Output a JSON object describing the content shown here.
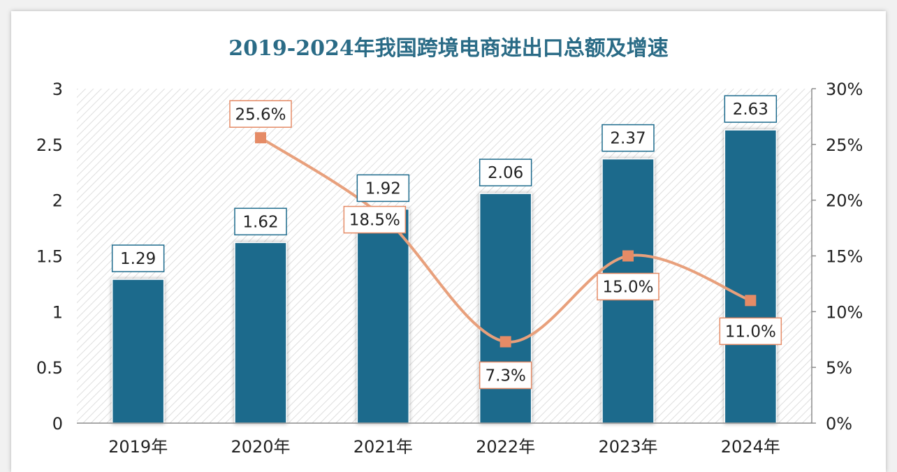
{
  "chart_data": {
    "type": "bar",
    "title": "2019-2024年我国跨境电商进出口总额及增速",
    "categories": [
      "2019年",
      "2020年",
      "2021年",
      "2022年",
      "2023年",
      "2024年"
    ],
    "series": [
      {
        "values": [
          1.29,
          1.62,
          1.92,
          2.06,
          2.37,
          2.63
        ],
        "type": "bar",
        "axis": "left",
        "labels": [
          "1.29",
          "1.62",
          "1.92",
          "2.06",
          "2.37",
          "2.63"
        ]
      },
      {
        "values": [
          null,
          25.6,
          18.5,
          7.3,
          15.0,
          11.0
        ],
        "type": "line",
        "axis": "right",
        "labels": [
          "",
          "25.6%",
          "18.5%",
          "7.3%",
          "15.0%",
          "11.0%"
        ]
      }
    ],
    "ylim": [
      0,
      3
    ],
    "y2lim": [
      0,
      30
    ],
    "yticks": [
      "0",
      "0.5",
      "1",
      "1.5",
      "2",
      "2.5",
      "3"
    ],
    "y2ticks": [
      "0%",
      "5%",
      "10%",
      "15%",
      "20%",
      "25%",
      "30%"
    ],
    "grid": false,
    "colors": {
      "bar": "#1c6a8c",
      "line": "#e8a07c",
      "marker": "#e58b66",
      "bar_label_border": "#1c6a8c",
      "line_label_border": "#e58b66",
      "title": "#2a6b86"
    }
  }
}
